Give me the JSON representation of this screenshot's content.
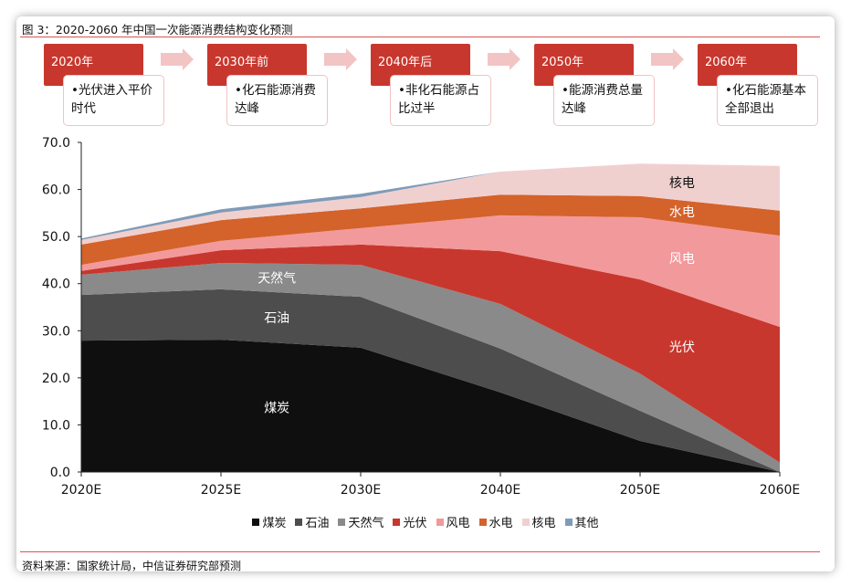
{
  "title": "图 3：2020-2060 年中国一次能源消费结构变化预测",
  "timeline": [
    {
      "year": "2020年",
      "text": "•光伏进入平价时代"
    },
    {
      "year": "2030年前",
      "text": "•化石能源消费达峰"
    },
    {
      "year": "2040年后",
      "text": "•非化石能源占比过半"
    },
    {
      "year": "2050年",
      "text": "•能源消费总量达峰"
    },
    {
      "year": "2060年",
      "text": "•化石能源基本全部退出"
    }
  ],
  "source": "资料来源：国家统计局，中信证券研究部预测",
  "chart_data": {
    "type": "area",
    "stacked": true,
    "categories": [
      "2020E",
      "2025E",
      "2030E",
      "2040E",
      "2050E",
      "2060E"
    ],
    "ylim": [
      0,
      70
    ],
    "yticks": [
      "0.0",
      "10.0",
      "20.0",
      "30.0",
      "40.0",
      "50.0",
      "60.0",
      "70.0"
    ],
    "legend_position": "bottom",
    "grid": false,
    "series": [
      {
        "name": "煤炭",
        "color": "#0f0f0f",
        "label_color": "#ffffff",
        "values": [
          27.9,
          28.1,
          26.4,
          16.9,
          6.6,
          0
        ]
      },
      {
        "name": "石油",
        "color": "#4d4d4d",
        "label_color": "#ffffff",
        "values": [
          9.7,
          10.7,
          10.8,
          9.3,
          6.4,
          0
        ]
      },
      {
        "name": "天然气",
        "color": "#8a8a8a",
        "label_color": "#ffffff",
        "values": [
          4.3,
          5.6,
          6.8,
          9.5,
          7.9,
          2.0
        ]
      },
      {
        "name": "光伏",
        "color": "#c8372d",
        "label_color": "#ffffff",
        "values": [
          0.8,
          2.7,
          4.3,
          11.2,
          20.0,
          28.8
        ]
      },
      {
        "name": "风电",
        "color": "#f2999b",
        "label_color": "#ffffff",
        "values": [
          1.3,
          2.0,
          3.5,
          7.6,
          13.2,
          19.4
        ]
      },
      {
        "name": "水电",
        "color": "#d4622b",
        "label_color": "#ffffff",
        "values": [
          4.3,
          4.4,
          4.2,
          4.4,
          4.5,
          5.3
        ]
      },
      {
        "name": "核电",
        "color": "#f0d0cf",
        "label_color": "#111111",
        "values": [
          1.0,
          1.6,
          2.4,
          4.9,
          6.9,
          9.5
        ]
      },
      {
        "name": "其他",
        "color": "#7f9bb8",
        "values": [
          0.3,
          0.7,
          0.7,
          0,
          0,
          0
        ]
      }
    ]
  }
}
